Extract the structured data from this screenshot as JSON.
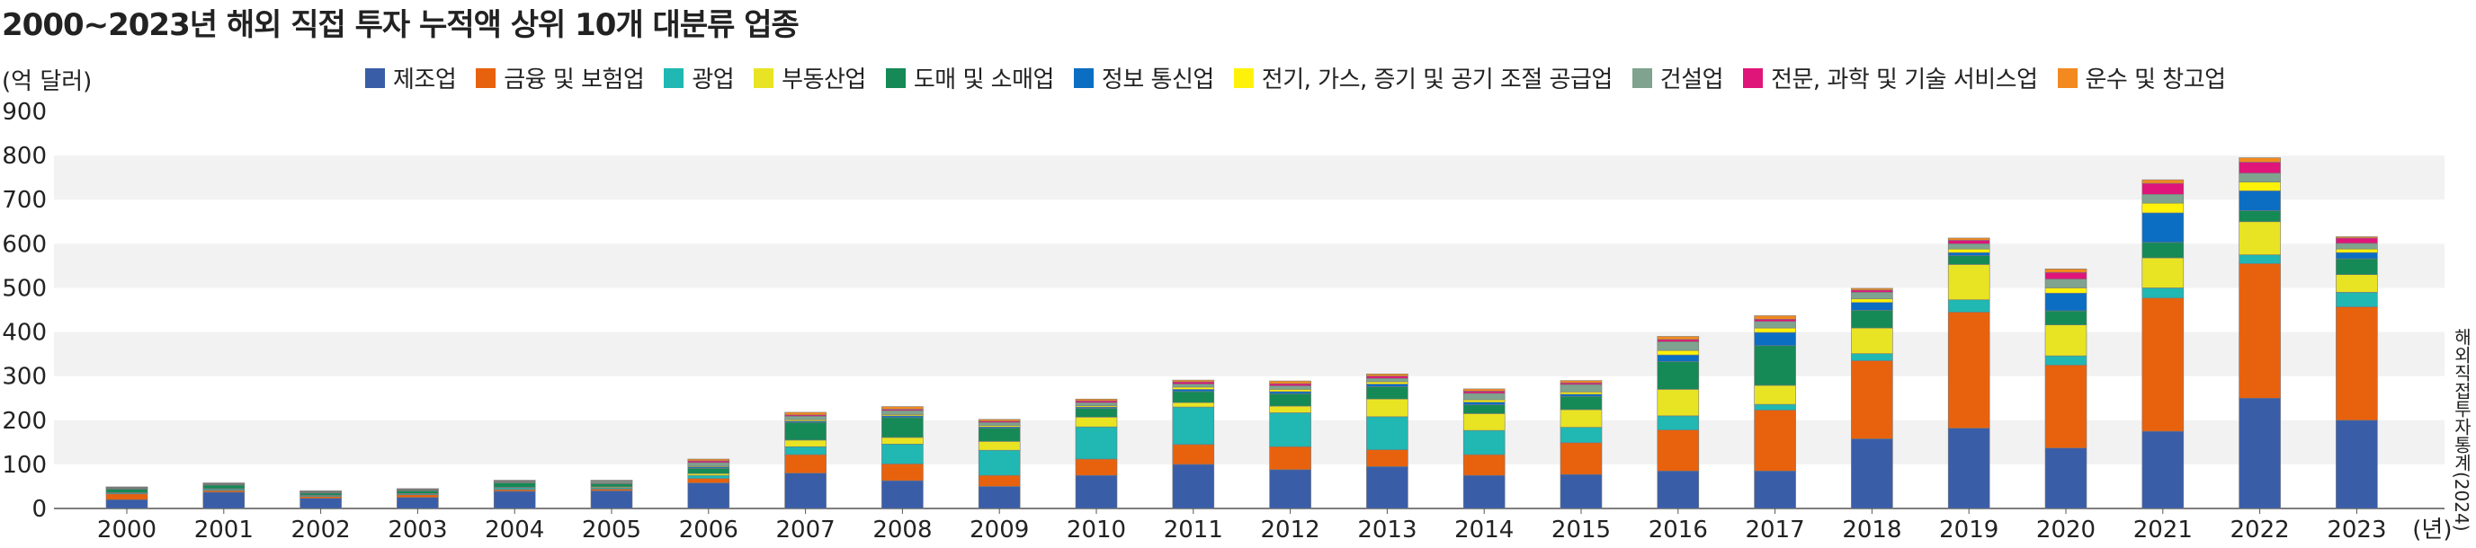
{
  "title": "2000~2023년 해외 직접 투자 누적액 상위 10개 대분류 업종",
  "unit_label": "(억 달러)",
  "source": "해외직접투자통계(2024)",
  "chart_data": {
    "type": "bar",
    "stacked": true,
    "title": "2000~2023년 해외 직접 투자 누적액 상위 10개 대분류 업종",
    "ylabel": "(억 달러)",
    "xlabel": "",
    "x_unit": "(년)",
    "ylim": [
      0,
      900
    ],
    "yticks": [
      "0",
      "100",
      "200",
      "300",
      "400",
      "500",
      "600",
      "700",
      "800",
      "900"
    ],
    "grid": "alternating horizontal bands",
    "legend_position": "top",
    "categories": [
      "2000",
      "2001",
      "2002",
      "2003",
      "2004",
      "2005",
      "2006",
      "2007",
      "2008",
      "2009",
      "2010",
      "2011",
      "2012",
      "2013",
      "2014",
      "2015",
      "2016",
      "2017",
      "2018",
      "2019",
      "2020",
      "2021",
      "2022",
      "2023"
    ],
    "series": [
      {
        "name": "제조업",
        "color": "#3a5da8",
        "values": [
          20,
          37,
          23,
          25,
          39,
          40,
          58,
          80,
          63,
          50,
          75,
          100,
          88,
          95,
          75,
          77,
          85,
          85,
          158,
          182,
          137,
          175,
          250,
          200
        ]
      },
      {
        "name": "금융 및 보험업",
        "color": "#e8620e",
        "values": [
          13,
          4,
          4,
          6,
          4,
          4,
          10,
          42,
          38,
          25,
          37,
          45,
          52,
          38,
          47,
          72,
          93,
          138,
          177,
          263,
          188,
          302,
          305,
          257
        ]
      },
      {
        "name": "광업",
        "color": "#21b7b3",
        "values": [
          2,
          3,
          2,
          2,
          4,
          3,
          7,
          18,
          45,
          57,
          73,
          85,
          77,
          75,
          55,
          35,
          32,
          13,
          16,
          28,
          21,
          23,
          20,
          33
        ]
      },
      {
        "name": "부동산업",
        "color": "#e9e423",
        "values": [
          1,
          1,
          1,
          1,
          1,
          2,
          4,
          15,
          15,
          20,
          22,
          10,
          15,
          40,
          38,
          40,
          60,
          43,
          58,
          80,
          70,
          68,
          75,
          40
        ]
      },
      {
        "name": "도매 및 소매업",
        "color": "#158a56",
        "values": [
          8,
          8,
          5,
          6,
          10,
          7,
          12,
          40,
          45,
          30,
          20,
          25,
          28,
          28,
          20,
          30,
          63,
          90,
          40,
          20,
          32,
          35,
          25,
          36
        ]
      },
      {
        "name": "정보 통신업",
        "color": "#0b6ec3",
        "values": [
          1,
          1,
          1,
          1,
          1,
          1,
          3,
          3,
          4,
          3,
          3,
          5,
          5,
          6,
          6,
          5,
          15,
          30,
          18,
          7,
          40,
          67,
          45,
          14
        ]
      },
      {
        "name": "전기, 가스, 증기 및 공기 조절 공급업",
        "color": "#fff20a",
        "values": [
          1,
          1,
          1,
          1,
          1,
          1,
          2,
          3,
          3,
          3,
          3,
          5,
          5,
          5,
          5,
          5,
          10,
          10,
          8,
          8,
          12,
          22,
          20,
          8
        ]
      },
      {
        "name": "건설업",
        "color": "#7fa38e",
        "values": [
          1,
          1,
          1,
          1,
          2,
          4,
          8,
          8,
          9,
          7,
          7,
          7,
          8,
          8,
          15,
          17,
          20,
          15,
          15,
          12,
          20,
          20,
          20,
          13
        ]
      },
      {
        "name": "전문, 과학 및 기술 서비스업",
        "color": "#e0157a",
        "values": [
          1,
          1,
          1,
          1,
          1,
          1,
          4,
          3,
          3,
          3,
          4,
          5,
          5,
          5,
          5,
          4,
          5,
          5,
          5,
          8,
          15,
          25,
          25,
          12
        ]
      },
      {
        "name": "운수 및 창고업",
        "color": "#f28a1f",
        "values": [
          1,
          1,
          1,
          1,
          1,
          1,
          4,
          6,
          6,
          4,
          4,
          4,
          6,
          5,
          5,
          5,
          7,
          8,
          4,
          5,
          8,
          8,
          10,
          3
        ]
      }
    ]
  }
}
